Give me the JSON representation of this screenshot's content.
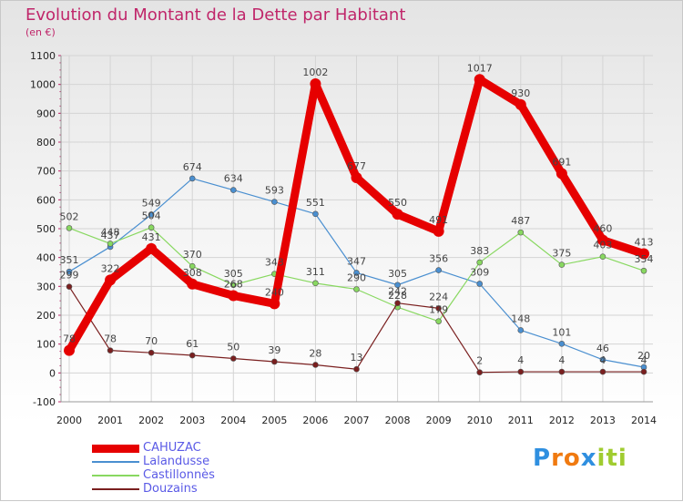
{
  "chart_data": {
    "type": "line",
    "title": "Evolution du Montant de la Dette par Habitant",
    "subtitle": "(en €)",
    "xlabel": "",
    "ylabel": "",
    "x": [
      "2000",
      "2001",
      "2002",
      "2003",
      "2004",
      "2005",
      "2006",
      "2007",
      "2008",
      "2009",
      "2010",
      "2011",
      "2012",
      "2013",
      "2014"
    ],
    "ylim": [
      -100,
      1100
    ],
    "yticks": [
      -100,
      0,
      100,
      200,
      300,
      400,
      500,
      600,
      700,
      800,
      900,
      1000,
      1100
    ],
    "grid": true,
    "legend_position": "bottom-left",
    "series": [
      {
        "name": "CAHUZAC",
        "color": "#e60000",
        "values": [
          78,
          322,
          431,
          308,
          268,
          240,
          1002,
          677,
          550,
          491,
          1017,
          930,
          691,
          460,
          413
        ]
      },
      {
        "name": "Lalandusse",
        "color": "#4a8fd0",
        "values": [
          351,
          437,
          549,
          674,
          634,
          593,
          551,
          347,
          305,
          356,
          309,
          148,
          101,
          46,
          20
        ]
      },
      {
        "name": "Castillonnès",
        "color": "#88d860",
        "values": [
          502,
          448,
          504,
          370,
          305,
          343,
          311,
          290,
          228,
          179,
          383,
          487,
          375,
          403,
          354
        ]
      },
      {
        "name": "Douzains",
        "color": "#7a1f1f",
        "values": [
          299,
          78,
          70,
          61,
          50,
          39,
          28,
          13,
          242,
          224,
          2,
          4,
          4,
          4,
          4
        ]
      }
    ]
  },
  "logo": {
    "letters": [
      "P",
      "r",
      "o",
      "x",
      "i",
      "t",
      "i"
    ],
    "colors": [
      "#2f8fe0",
      "#f07a10",
      "#f07a10",
      "#2f8fe0",
      "#a0cc30",
      "#a0cc30",
      "#a0cc30"
    ]
  }
}
